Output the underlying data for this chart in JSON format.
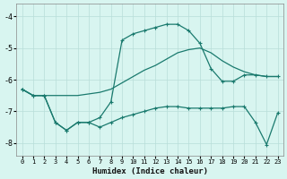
{
  "xlabel": "Humidex (Indice chaleur)",
  "bg_color": "#d8f5f0",
  "grid_color": "#b8ddd8",
  "line_color": "#1a7a6e",
  "xlim": [
    -0.5,
    23.5
  ],
  "ylim": [
    -8.4,
    -3.6
  ],
  "yticks": [
    -8,
    -7,
    -6,
    -5,
    -4
  ],
  "xticks": [
    0,
    1,
    2,
    3,
    4,
    5,
    6,
    7,
    8,
    9,
    10,
    11,
    12,
    13,
    14,
    15,
    16,
    17,
    18,
    19,
    20,
    21,
    22,
    23
  ],
  "line1_x": [
    0,
    1,
    2,
    3,
    4,
    5,
    6,
    7,
    8,
    9,
    10,
    11,
    12,
    13,
    14,
    15,
    16,
    17,
    18,
    19,
    20,
    21,
    22,
    23
  ],
  "line1_y": [
    -6.3,
    -6.5,
    -6.5,
    -6.5,
    -6.5,
    -6.5,
    -6.45,
    -6.4,
    -6.3,
    -6.1,
    -5.9,
    -5.7,
    -5.55,
    -5.35,
    -5.15,
    -5.05,
    -5.0,
    -5.15,
    -5.4,
    -5.6,
    -5.75,
    -5.85,
    -5.9,
    -5.9
  ],
  "line2_x": [
    0,
    1,
    2,
    3,
    4,
    5,
    6,
    7,
    8,
    9,
    10,
    11,
    12,
    13,
    14,
    15,
    16,
    17,
    18,
    19,
    20,
    21,
    22,
    23
  ],
  "line2_y": [
    -6.3,
    -6.5,
    -6.5,
    -7.35,
    -7.6,
    -7.35,
    -7.35,
    -7.2,
    -6.7,
    -4.75,
    -4.55,
    -4.45,
    -4.35,
    -4.25,
    -4.25,
    -4.45,
    -4.85,
    -5.65,
    -6.05,
    -6.05,
    -5.85,
    -5.85,
    -5.9,
    -5.9
  ],
  "line3_x": [
    0,
    1,
    2,
    3,
    4,
    5,
    6,
    7,
    8,
    9,
    10,
    11,
    12,
    13,
    14,
    15,
    16,
    17,
    18,
    19,
    20,
    21,
    22,
    23
  ],
  "line3_y": [
    -6.3,
    -6.5,
    -6.5,
    -7.35,
    -7.6,
    -7.35,
    -7.35,
    -7.5,
    -7.35,
    -7.2,
    -7.1,
    -7.0,
    -6.9,
    -6.85,
    -6.85,
    -6.9,
    -6.9,
    -6.9,
    -6.9,
    -6.85,
    -6.85,
    -7.35,
    -8.05,
    -7.05
  ]
}
